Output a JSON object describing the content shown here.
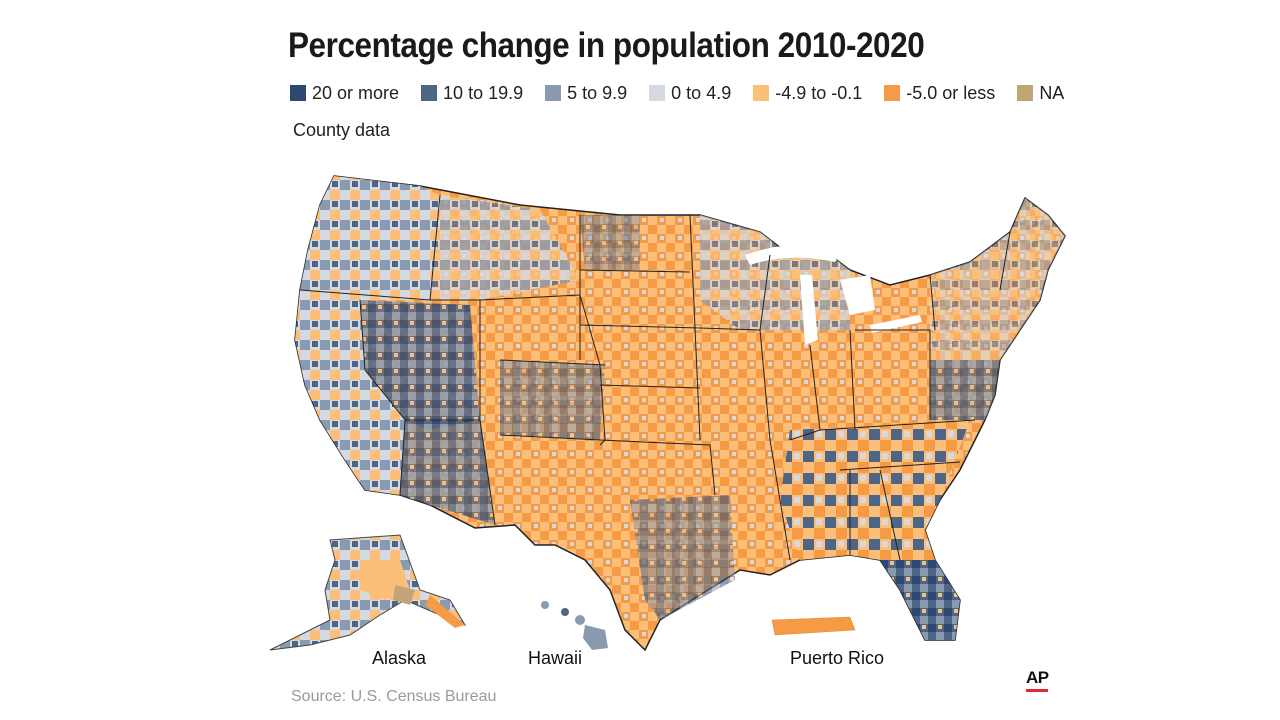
{
  "title": "Percentage change in population 2010-2020",
  "subtitle": "County data",
  "legend": [
    {
      "label": "20 or more",
      "color": "#2c4770"
    },
    {
      "label": "10 to 19.9",
      "color": "#4e6585"
    },
    {
      "label": "5 to 9.9",
      "color": "#8a9ab0"
    },
    {
      "label": "0 to 4.9",
      "color": "#d5dae2"
    },
    {
      "label": "-4.9 to -0.1",
      "color": "#fbbf7a"
    },
    {
      "label": "-5.0 or less",
      "color": "#f59a45"
    },
    {
      "label": "NA",
      "color": "#c1a577"
    }
  ],
  "regions": {
    "alaska": "Alaska",
    "hawaii": "Hawaii",
    "puerto_rico": "Puerto Rico"
  },
  "source": "Source: U.S. Census Bureau",
  "credit": "AP"
}
